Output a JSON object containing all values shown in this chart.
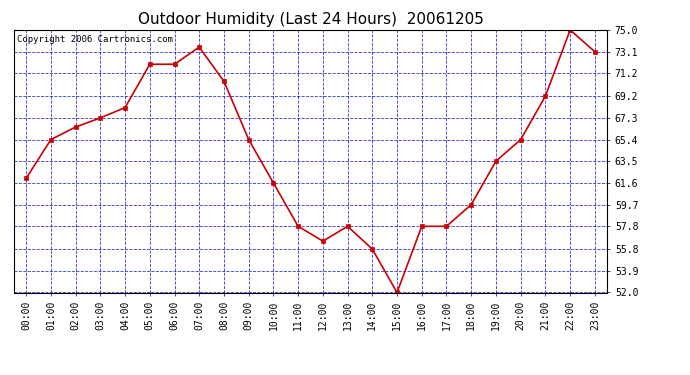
{
  "title": "Outdoor Humidity (Last 24 Hours)  20061205",
  "copyright_text": "Copyright 2006 Cartronics.com",
  "x_labels": [
    "00:00",
    "01:00",
    "02:00",
    "03:00",
    "04:00",
    "05:00",
    "06:00",
    "07:00",
    "08:00",
    "09:00",
    "10:00",
    "11:00",
    "12:00",
    "13:00",
    "14:00",
    "15:00",
    "16:00",
    "17:00",
    "18:00",
    "19:00",
    "20:00",
    "21:00",
    "22:00",
    "23:00"
  ],
  "y_values": [
    62.0,
    65.4,
    66.5,
    67.3,
    68.2,
    72.0,
    72.0,
    73.5,
    70.5,
    65.4,
    61.6,
    57.8,
    56.5,
    57.8,
    55.8,
    52.0,
    57.8,
    57.8,
    59.7,
    63.5,
    65.4,
    69.2,
    75.0,
    73.1
  ],
  "line_color": "#cc0000",
  "marker_color": "#cc0000",
  "fig_bg_color": "#ffffff",
  "plot_bg_color": "#ffffff",
  "grid_color": "#0000cc",
  "border_color": "#000000",
  "title_fontsize": 11,
  "copyright_fontsize": 6.5,
  "tick_fontsize": 7,
  "ylim": [
    52.0,
    75.0
  ],
  "yticks": [
    52.0,
    53.9,
    55.8,
    57.8,
    59.7,
    61.6,
    63.5,
    65.4,
    67.3,
    69.2,
    71.2,
    73.1,
    75.0
  ]
}
